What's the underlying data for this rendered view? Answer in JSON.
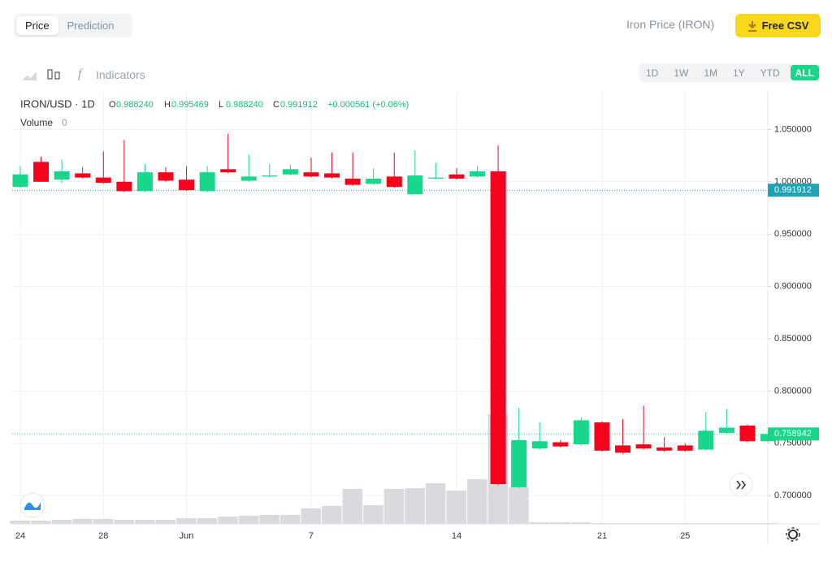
{
  "ui": {
    "tabs": [
      "Price",
      "Prediction"
    ],
    "coin_name": "Iron Price (IRON)",
    "csv_button": "Free CSV",
    "indicators": "Indicators",
    "ranges": [
      "1D",
      "1W",
      "1M",
      "1Y",
      "YTD",
      "ALL"
    ]
  },
  "chart_data": {
    "type": "candlestick",
    "symbol": "IRON/USD · 1D",
    "ohlc_legend": [
      {
        "key": "O",
        "value": "0.988240"
      },
      {
        "key": "H",
        "value": "0.995469"
      },
      {
        "key": "L",
        "value": "0.988240"
      },
      {
        "key": "C",
        "value": "0.991912"
      }
    ],
    "change": "+0.000561 (+0.06%)",
    "volume_label": "Volume",
    "volume_value": "0",
    "categories": [
      "24",
      null,
      null,
      null,
      "28",
      null,
      null,
      null,
      "Jun",
      null,
      null,
      null,
      null,
      null,
      "7",
      null,
      null,
      null,
      null,
      null,
      null,
      "14",
      null,
      null,
      null,
      null,
      null,
      null,
      "21",
      null,
      null,
      null,
      "25",
      null,
      null,
      null,
      null
    ],
    "open": [
      0.995,
      1.019,
      1.002,
      1.008,
      1.004,
      1.0,
      0.991,
      1.009,
      1.002,
      0.991,
      1.012,
      1.001,
      1.005,
      1.007,
      1.009,
      1.008,
      1.003,
      0.998,
      1.005,
      0.988,
      1.003,
      1.007,
      1.005,
      1.01,
      0.708,
      0.745,
      0.751,
      0.749,
      0.77,
      0.748,
      0.749,
      0.746,
      0.748,
      0.744,
      0.76,
      0.767,
      0.752
    ],
    "high": [
      1.015,
      1.024,
      1.021,
      1.014,
      1.029,
      1.04,
      1.017,
      1.014,
      1.015,
      1.015,
      1.046,
      1.026,
      1.017,
      1.016,
      1.023,
      1.028,
      1.028,
      1.013,
      1.028,
      1.03,
      1.018,
      1.013,
      1.015,
      1.035,
      0.784,
      0.77,
      0.753,
      0.775,
      0.771,
      0.773,
      0.786,
      0.756,
      0.75,
      0.78,
      0.783,
      0.768,
      0.76
    ],
    "low": [
      0.994,
      1.0,
      0.999,
      1.003,
      0.998,
      0.99,
      0.99,
      1.0,
      0.991,
      0.99,
      1.008,
      1.0,
      1.004,
      1.006,
      1.004,
      1.003,
      0.996,
      0.997,
      0.994,
      0.988,
      1.002,
      1.002,
      1.004,
      0.71,
      0.707,
      0.744,
      0.746,
      0.748,
      0.742,
      0.74,
      0.744,
      0.742,
      0.742,
      0.743,
      0.759,
      0.751,
      0.751
    ],
    "close": [
      1.007,
      1.0,
      1.01,
      1.004,
      0.999,
      0.991,
      1.009,
      1.001,
      0.992,
      1.009,
      1.009,
      1.005,
      1.006,
      1.012,
      1.005,
      1.004,
      0.997,
      1.003,
      0.995,
      1.006,
      1.004,
      1.003,
      1.01,
      0.711,
      0.753,
      0.752,
      0.747,
      0.772,
      0.743,
      0.741,
      0.745,
      0.743,
      0.743,
      0.762,
      0.765,
      0.752,
      0.758942
    ],
    "volume": [
      4,
      4,
      5,
      6,
      6,
      5,
      5,
      5,
      7,
      7,
      9,
      10,
      11,
      11,
      19,
      22,
      43,
      23,
      43,
      44,
      50,
      41,
      55,
      135,
      45,
      2,
      2,
      2,
      1,
      1,
      1,
      1,
      1,
      1,
      1,
      1,
      1
    ],
    "up_color": "#19d68d",
    "down_color": "#f5031d",
    "volume_color": "#d9dadd",
    "ylim": [
      0.673,
      1.086
    ],
    "yticks": [
      {
        "value": 0.7,
        "label": "0.700000"
      },
      {
        "value": 0.75,
        "label": "0.750000"
      },
      {
        "value": 0.8,
        "label": "0.800000"
      },
      {
        "value": 0.85,
        "label": "0.850000"
      },
      {
        "value": 0.9,
        "label": "0.900000"
      },
      {
        "value": 0.95,
        "label": "0.950000"
      },
      {
        "value": 1.0,
        "label": "1.000000"
      },
      {
        "value": 1.05,
        "label": "1.050000"
      }
    ],
    "price_lines": [
      {
        "value": 0.991912,
        "color": "#1fa2b4"
      },
      {
        "value": 0.758942,
        "color": "#19d68d"
      }
    ],
    "grid": true
  }
}
